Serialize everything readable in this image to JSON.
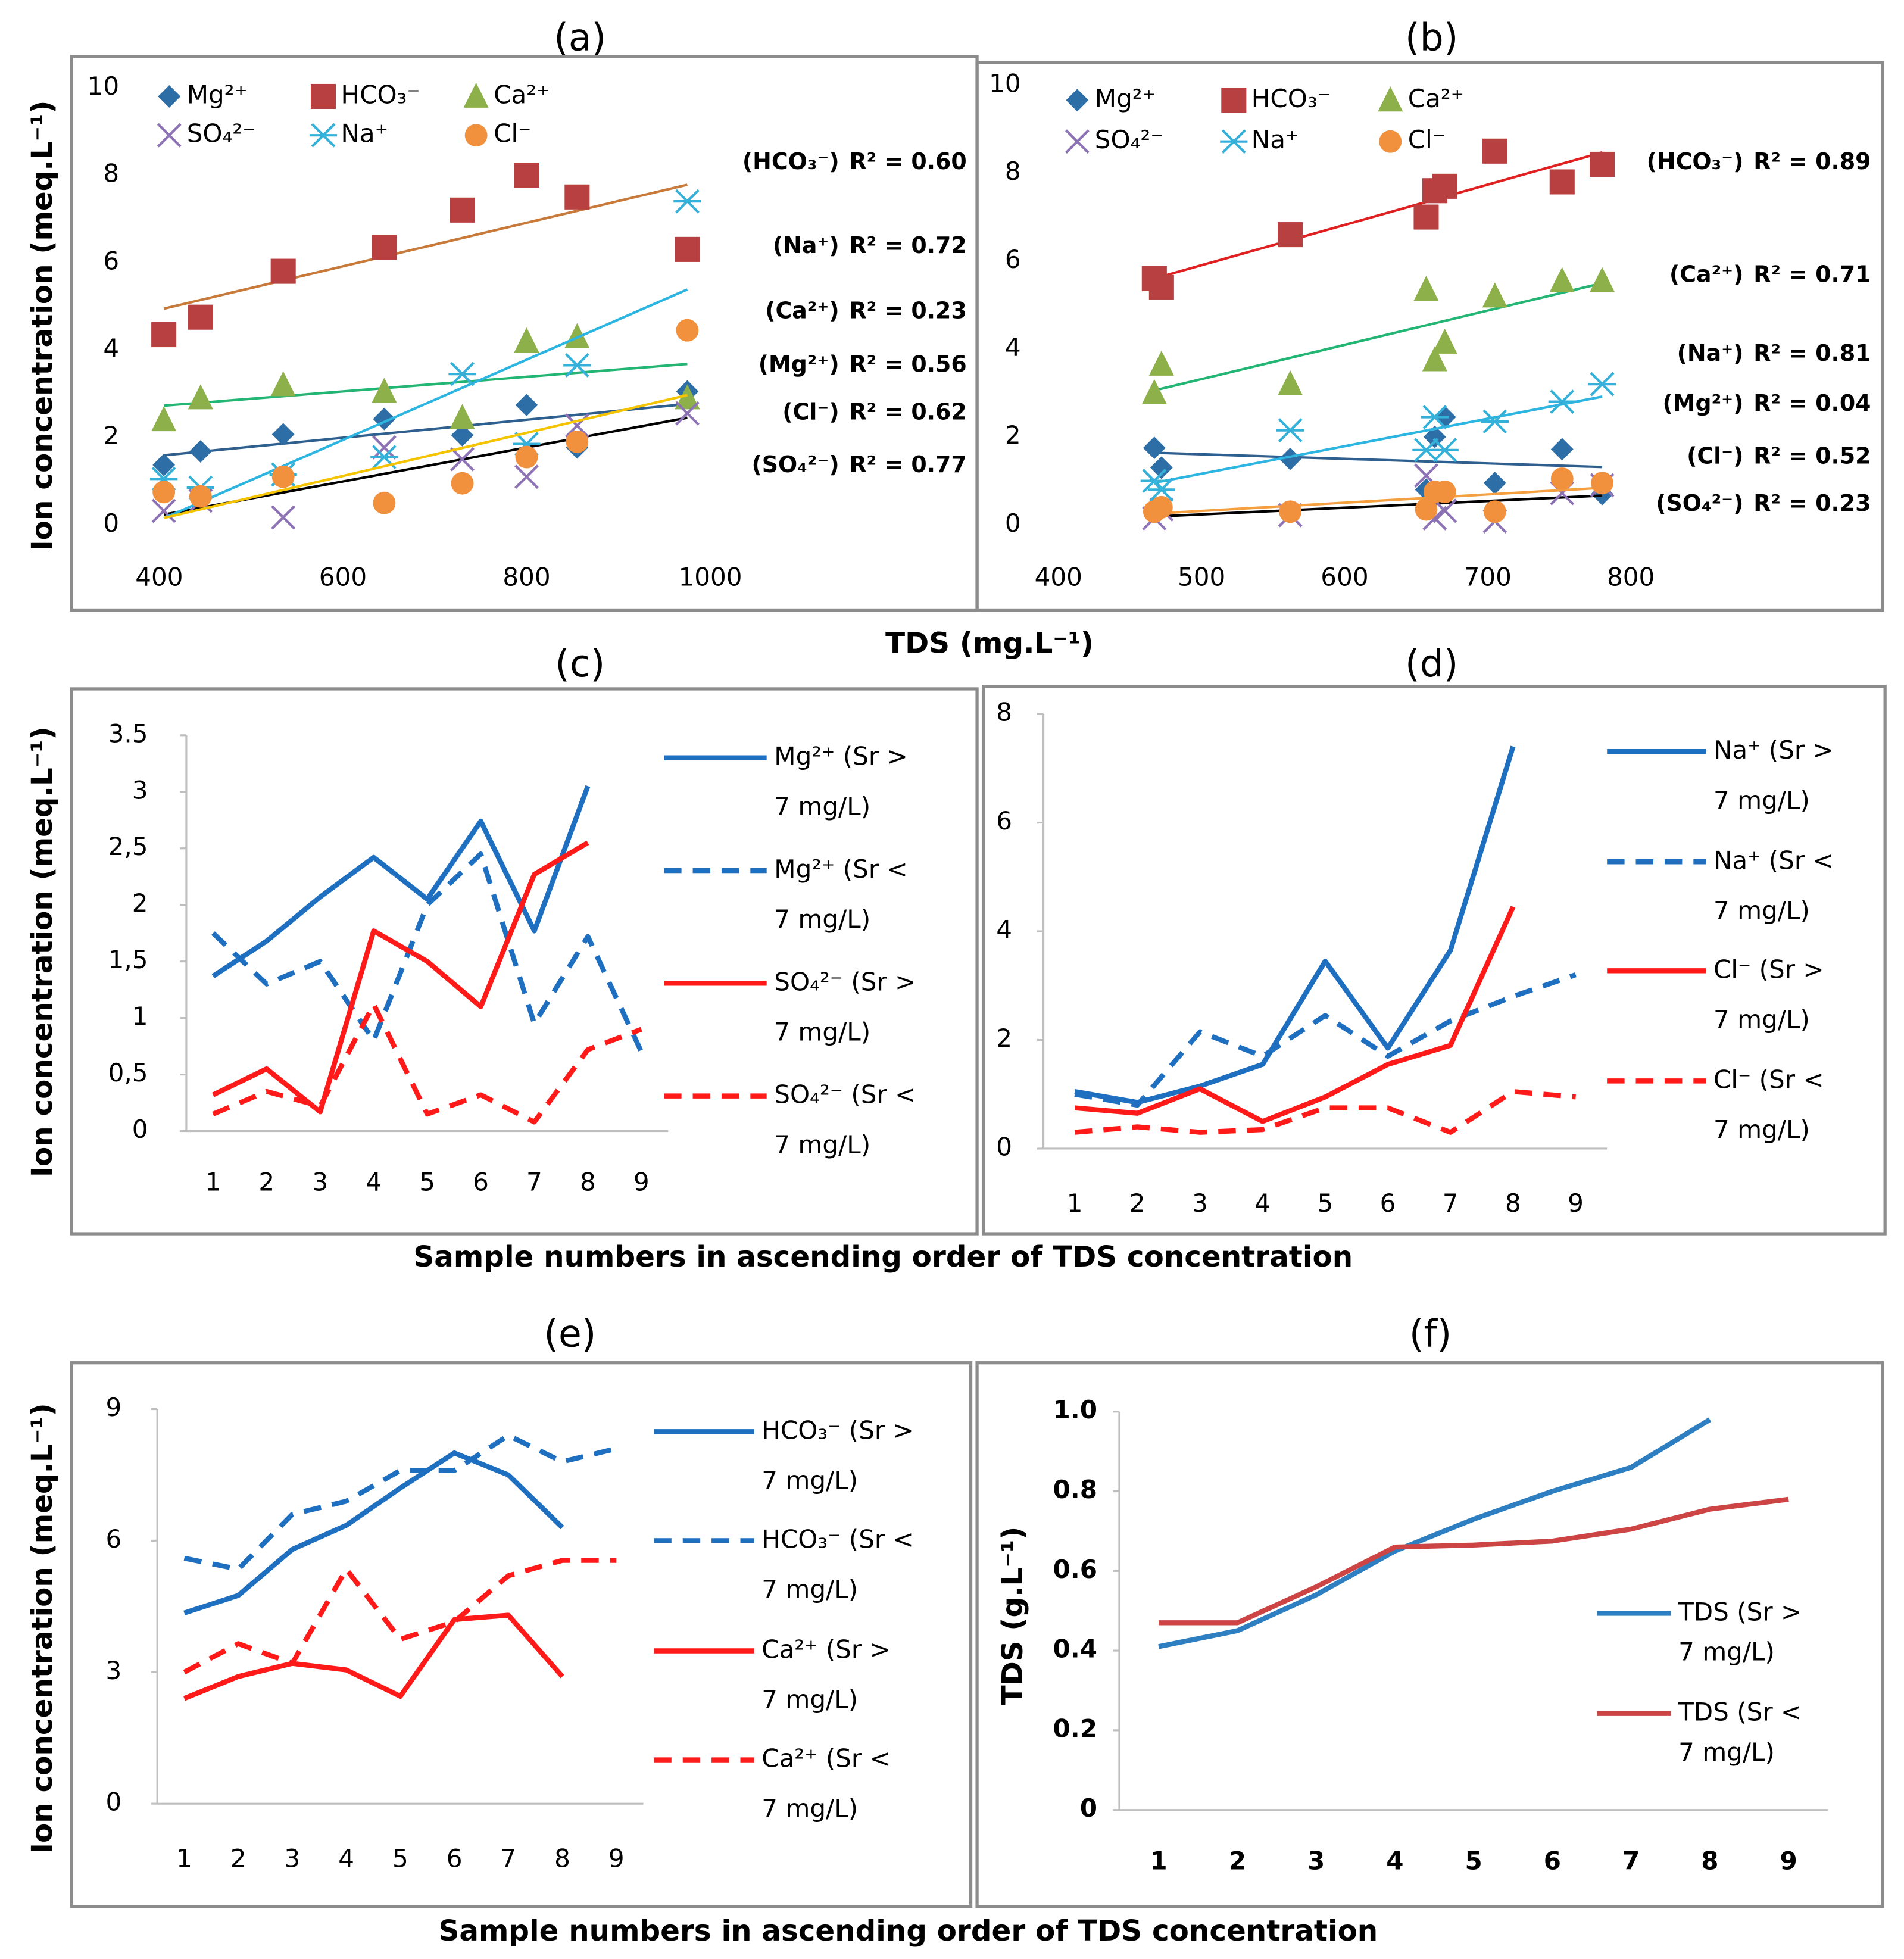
{
  "chart_data": [
    {
      "type": "scatter",
      "title": "(a)",
      "ylabel": "Ion concentration (meq.L⁻¹)",
      "xlabel": "TDS (mg.L⁻¹)",
      "xlim": [
        400,
        1000
      ],
      "xticks": [
        400,
        600,
        800,
        1000
      ],
      "ylim": [
        0,
        10
      ],
      "yticks": [
        0,
        2,
        4,
        6,
        8,
        10
      ],
      "x": [
        405,
        445,
        535,
        645,
        730,
        800,
        855,
        975
      ],
      "series": [
        {
          "name": "Mg²⁺",
          "color": "#2e6ea6",
          "marker": "diamond",
          "trend_color": "#2f5f8f",
          "values": [
            1.37,
            1.68,
            2.07,
            2.42,
            2.05,
            2.74,
            1.77,
            3.05
          ]
        },
        {
          "name": "HCO₃⁻",
          "color": "#b84040",
          "marker": "square",
          "trend_color": "#c87a3a",
          "values": [
            4.35,
            4.75,
            5.8,
            6.35,
            7.2,
            8.0,
            7.5,
            6.3
          ]
        },
        {
          "name": "Ca²⁺",
          "color": "#8db04a",
          "marker": "triangle",
          "trend_color": "#22b573",
          "values": [
            2.4,
            2.9,
            3.2,
            3.05,
            2.45,
            4.2,
            4.3,
            2.9
          ]
        },
        {
          "name": "SO₄²⁻",
          "color": "#8d73b5",
          "marker": "cross",
          "trend_color": "#000000",
          "values": [
            0.32,
            0.55,
            0.17,
            1.77,
            1.5,
            1.1,
            2.27,
            2.55
          ]
        },
        {
          "name": "Na⁺",
          "color": "#35b0d8",
          "marker": "star",
          "trend_color": "#2bb5e0",
          "values": [
            1.05,
            0.85,
            1.15,
            1.55,
            3.45,
            1.85,
            3.65,
            7.4
          ]
        },
        {
          "name": "Cl⁻",
          "color": "#f2913d",
          "marker": "circle",
          "trend_color": "#f5c400",
          "values": [
            0.75,
            0.65,
            1.1,
            0.5,
            0.95,
            1.55,
            1.9,
            4.45
          ]
        }
      ],
      "annotations": [
        {
          "text": "(HCO₃⁻)",
          "r2": "R² = 0.60",
          "color": "#b04848"
        },
        {
          "text": "(Na⁺)",
          "r2": "R² = 0.72",
          "color": "#2bb5e0"
        },
        {
          "text": "(Ca²⁺)",
          "r2": "R² = 0.23",
          "color": "#6aa84f"
        },
        {
          "text": "(Mg²⁺)",
          "r2": "R² = 0.56",
          "color": "#2e6ea6"
        },
        {
          "text": "(Cl⁻)",
          "r2": "R² = 0.62",
          "color": "#f08a3c"
        },
        {
          "text": "(SO₄²⁻)",
          "r2": "R² = 0.77",
          "color": "#000000"
        }
      ]
    },
    {
      "type": "scatter",
      "title": "(b)",
      "xlim": [
        400,
        800
      ],
      "xticks": [
        400,
        500,
        600,
        700,
        800
      ],
      "ylim": [
        0,
        10
      ],
      "yticks": [
        0,
        2,
        4,
        6,
        8,
        10
      ],
      "x": [
        467,
        472,
        562,
        657,
        663,
        670,
        705,
        752,
        780
      ],
      "series": [
        {
          "name": "Mg²⁺",
          "color": "#2e6ea6",
          "marker": "diamond",
          "trend_color": "#2f5f8f",
          "values": [
            1.75,
            1.3,
            1.5,
            0.8,
            2.0,
            2.45,
            0.95,
            1.72,
            0.7
          ]
        },
        {
          "name": "HCO₃⁻",
          "color": "#b84040",
          "marker": "square",
          "trend_color": "#e02020",
          "values": [
            5.6,
            5.4,
            6.6,
            7.0,
            7.6,
            7.7,
            8.5,
            7.8,
            8.2
          ]
        },
        {
          "name": "Ca²⁺",
          "color": "#8db04a",
          "marker": "triangle",
          "trend_color": "#22b573",
          "values": [
            3.0,
            3.65,
            3.2,
            5.35,
            3.75,
            4.15,
            5.2,
            5.55,
            5.55
          ]
        },
        {
          "name": "SO₄²⁻",
          "color": "#8d73b5",
          "marker": "cross",
          "trend_color": "#000000",
          "values": [
            0.15,
            0.35,
            0.22,
            1.12,
            0.15,
            0.32,
            0.08,
            0.72,
            0.9
          ]
        },
        {
          "name": "Na⁺",
          "color": "#35b0d8",
          "marker": "star",
          "trend_color": "#2bb5e0",
          "values": [
            1.0,
            0.8,
            2.15,
            1.7,
            2.45,
            1.7,
            2.35,
            2.8,
            3.2
          ]
        },
        {
          "name": "Cl⁻",
          "color": "#f2913d",
          "marker": "circle",
          "trend_color": "#f5a040",
          "values": [
            0.3,
            0.4,
            0.3,
            0.35,
            0.75,
            0.75,
            0.3,
            1.05,
            0.95
          ]
        }
      ],
      "annotations": [
        {
          "text": "(HCO₃⁻)",
          "r2": "R² = 0.89",
          "color": "#b04848"
        },
        {
          "text": "(Ca²⁺)",
          "r2": "R² = 0.71",
          "color": "#6aa84f"
        },
        {
          "text": "(Na⁺)",
          "r2": "R² = 0.81",
          "color": "#2bb5e0"
        },
        {
          "text": "(Mg²⁺)",
          "r2": "R² = 0.04",
          "color": "#2e6ea6"
        },
        {
          "text": "(Cl⁻)",
          "r2": "R² = 0.52",
          "color": "#f08a3c"
        },
        {
          "text": "(SO₄²⁻)",
          "r2": "R² = 0.23",
          "color": "#000000"
        }
      ]
    },
    {
      "type": "line",
      "title": "(c)",
      "ylabel": "Ion concentration (meq.L⁻¹)",
      "xlabel": "Sample numbers in ascending order of TDS concentration",
      "categories": [
        "1",
        "2",
        "3",
        "4",
        "5",
        "6",
        "7",
        "8",
        "9"
      ],
      "ylim": [
        0,
        3.5
      ],
      "yticks": [
        0,
        {
          "value": 0.5,
          "label": "0,5"
        },
        1,
        {
          "value": 1.5,
          "label": "1,5"
        },
        2,
        {
          "value": 2.5,
          "label": "2,5"
        },
        3,
        3.5
      ],
      "series": [
        {
          "name": "Mg²⁺ (Sr > 7 mg/L)",
          "color": "#1f6fc0",
          "dash": false,
          "values": [
            1.37,
            1.68,
            2.07,
            2.42,
            2.05,
            2.74,
            1.77,
            3.05,
            null
          ]
        },
        {
          "name": "Mg²⁺ (Sr < 7 mg/L)",
          "color": "#1f6fc0",
          "dash": true,
          "values": [
            1.75,
            1.3,
            1.5,
            0.8,
            2.0,
            2.45,
            0.95,
            1.72,
            0.7
          ]
        },
        {
          "name": "SO₄²⁻ (Sr > 7 mg/L)",
          "color": "#ff1a1a",
          "dash": false,
          "values": [
            0.32,
            0.55,
            0.17,
            1.77,
            1.5,
            1.1,
            2.27,
            2.55,
            null
          ]
        },
        {
          "name": "SO₄²⁻ (Sr < 7 mg/L)",
          "color": "#ff1a1a",
          "dash": true,
          "values": [
            0.15,
            0.35,
            0.22,
            1.12,
            0.15,
            0.32,
            0.08,
            0.72,
            0.9
          ]
        }
      ]
    },
    {
      "type": "line",
      "title": "(d)",
      "categories": [
        "1",
        "2",
        "3",
        "4",
        "5",
        "6",
        "7",
        "8",
        "9"
      ],
      "ylim": [
        0,
        8
      ],
      "yticks": [
        0,
        2,
        4,
        6,
        8
      ],
      "series": [
        {
          "name": "Na⁺ (Sr > 7 mg/L)",
          "color": "#1f6fc0",
          "dash": false,
          "values": [
            1.05,
            0.85,
            1.15,
            1.55,
            3.45,
            1.85,
            3.65,
            7.4,
            null
          ]
        },
        {
          "name": "Na⁺ (Sr < 7 mg/L)",
          "color": "#1f6fc0",
          "dash": true,
          "values": [
            1.0,
            0.8,
            2.15,
            1.7,
            2.45,
            1.7,
            2.35,
            2.8,
            3.2
          ]
        },
        {
          "name": "Cl⁻ (Sr > 7 mg/L)",
          "color": "#ff1a1a",
          "dash": false,
          "values": [
            0.75,
            0.65,
            1.1,
            0.5,
            0.95,
            1.55,
            1.9,
            4.45,
            null
          ]
        },
        {
          "name": "Cl⁻ (Sr < 7 mg/L)",
          "color": "#ff1a1a",
          "dash": true,
          "values": [
            0.3,
            0.4,
            0.3,
            0.35,
            0.75,
            0.75,
            0.3,
            1.05,
            0.95
          ]
        }
      ]
    },
    {
      "type": "line",
      "title": "(e)",
      "ylabel": "Ion concentration (meq.L⁻¹)",
      "xlabel": "Sample numbers in ascending order of TDS concentration",
      "categories": [
        "1",
        "2",
        "3",
        "4",
        "5",
        "6",
        "7",
        "8",
        "9"
      ],
      "ylim": [
        0,
        9
      ],
      "yticks": [
        0,
        3,
        6,
        9
      ],
      "series": [
        {
          "name": "HCO₃⁻ (Sr > 7 mg/L)",
          "color": "#1f6fc0",
          "dash": false,
          "values": [
            4.35,
            4.75,
            5.8,
            6.35,
            7.2,
            8.0,
            7.5,
            6.3,
            null
          ]
        },
        {
          "name": "HCO₃⁻ (Sr < 7 mg/L)",
          "color": "#1f6fc0",
          "dash": true,
          "values": [
            5.6,
            5.35,
            6.6,
            6.9,
            7.6,
            7.6,
            8.4,
            7.8,
            8.1
          ]
        },
        {
          "name": "Ca²⁺ (Sr > 7 mg/L)",
          "color": "#ff1a1a",
          "dash": false,
          "values": [
            2.4,
            2.9,
            3.2,
            3.05,
            2.45,
            4.2,
            4.3,
            2.9,
            null
          ]
        },
        {
          "name": "Ca²⁺ (Sr < 7 mg/L)",
          "color": "#ff1a1a",
          "dash": true,
          "values": [
            3.0,
            3.65,
            3.2,
            5.35,
            3.75,
            4.15,
            5.2,
            5.55,
            5.55
          ]
        }
      ]
    },
    {
      "type": "line",
      "title": "(f)",
      "ylabel": "TDS (g.L⁻¹)",
      "tick_color": "#7f7f7f",
      "categories": [
        "1",
        "2",
        "3",
        "4",
        "5",
        "6",
        "7",
        "8",
        "9"
      ],
      "ylim": [
        0,
        1.0
      ],
      "yticks": [
        0,
        0.2,
        0.4,
        0.6,
        0.8,
        {
          "value": 1.0,
          "label": "1.0"
        }
      ],
      "series": [
        {
          "name": "TDS (Sr > 7 mg/L)",
          "color": "#2e7fc1",
          "dash": false,
          "values": [
            0.41,
            0.45,
            0.54,
            0.65,
            0.73,
            0.8,
            0.86,
            0.98,
            null
          ]
        },
        {
          "name": "TDS (Sr < 7 mg/L)",
          "color": "#cc4444",
          "dash": false,
          "values": [
            0.47,
            0.47,
            0.56,
            0.66,
            0.665,
            0.675,
            0.705,
            0.755,
            0.78
          ]
        }
      ]
    }
  ]
}
